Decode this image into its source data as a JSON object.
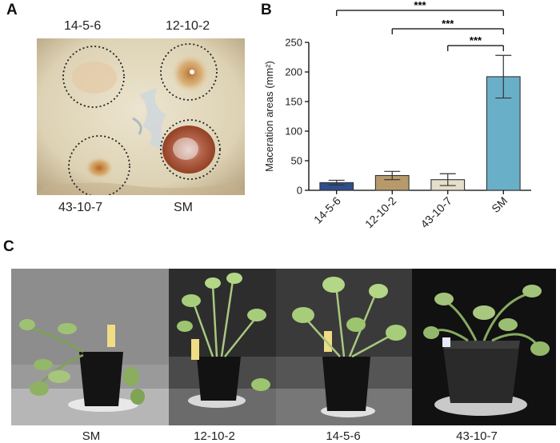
{
  "panel_letters": {
    "a": "A",
    "b": "B",
    "c": "C"
  },
  "panel_a": {
    "labels": {
      "top_left": "14-5-6",
      "top_right": "12-10-2",
      "bottom_left": "43-10-7",
      "bottom_right": "SM"
    }
  },
  "panel_c": {
    "captions": [
      "SM",
      "12-10-2",
      "14-5-6",
      "43-10-7"
    ]
  },
  "chart_data": {
    "type": "bar",
    "categories": [
      "14-5-6",
      "12-10-2",
      "43-10-7",
      "SM"
    ],
    "values": [
      13,
      25,
      18,
      192
    ],
    "errors": [
      4,
      7,
      10,
      36
    ],
    "colors": [
      "#2e4f8c",
      "#b79a6c",
      "#e4dfca",
      "#6aafc8"
    ],
    "ylabel": "Maceration areas (mm²)",
    "ylim": [
      0,
      250
    ],
    "yticks": [
      0,
      50,
      100,
      150,
      200,
      250
    ],
    "significance": [
      {
        "from": 0,
        "to": 3,
        "label": "***"
      },
      {
        "from": 1,
        "to": 3,
        "label": "***"
      },
      {
        "from": 2,
        "to": 3,
        "label": "***"
      }
    ]
  }
}
